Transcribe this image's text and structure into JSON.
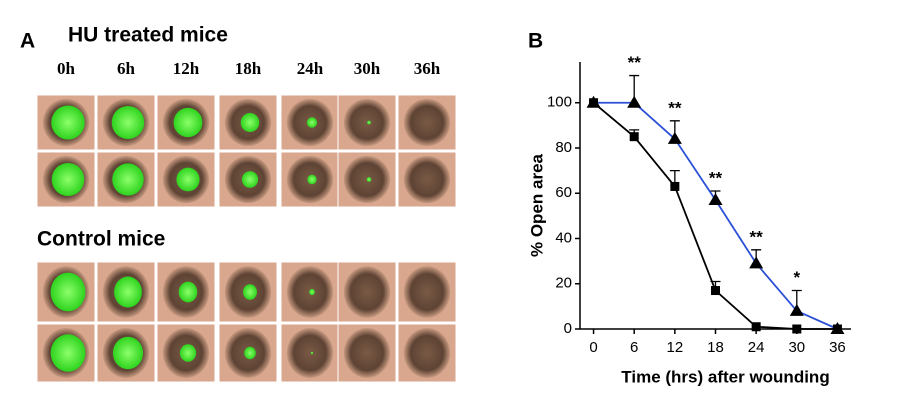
{
  "panel_a": {
    "label": "A",
    "title": "HU treated mice",
    "time_labels": [
      "0h",
      "6h",
      "12h",
      "18h",
      "24h",
      "30h",
      "36h"
    ],
    "control_title": "Control mice"
  },
  "chart_data": {
    "type": "line",
    "panel_label": "B",
    "xlabel": "Time (hrs) after wounding",
    "ylabel": "% Open area",
    "x": [
      0,
      6,
      12,
      18,
      24,
      30,
      36
    ],
    "series": [
      {
        "color": "#000000",
        "marker": "square",
        "values": [
          100,
          85,
          63,
          17,
          1,
          0,
          0
        ],
        "errors": [
          0,
          3,
          7,
          4,
          null,
          null,
          null
        ]
      },
      {
        "color": "#2a4fd6",
        "marker": "triangle",
        "values": [
          100,
          100,
          84,
          57,
          29,
          8,
          0
        ],
        "errors": [
          0,
          12,
          8,
          4,
          6,
          9,
          null
        ]
      }
    ],
    "annotations": [
      {
        "x": 6,
        "text": "**"
      },
      {
        "x": 12,
        "text": "**"
      },
      {
        "x": 18,
        "text": "**"
      },
      {
        "x": 24,
        "text": "**"
      },
      {
        "x": 30,
        "text": "*"
      }
    ],
    "xlim": [
      -2,
      38
    ],
    "ylim": [
      0,
      118
    ],
    "xticks": [
      0,
      6,
      12,
      18,
      24,
      30,
      36
    ],
    "yticks": [
      0,
      20,
      40,
      60,
      80,
      100
    ]
  }
}
